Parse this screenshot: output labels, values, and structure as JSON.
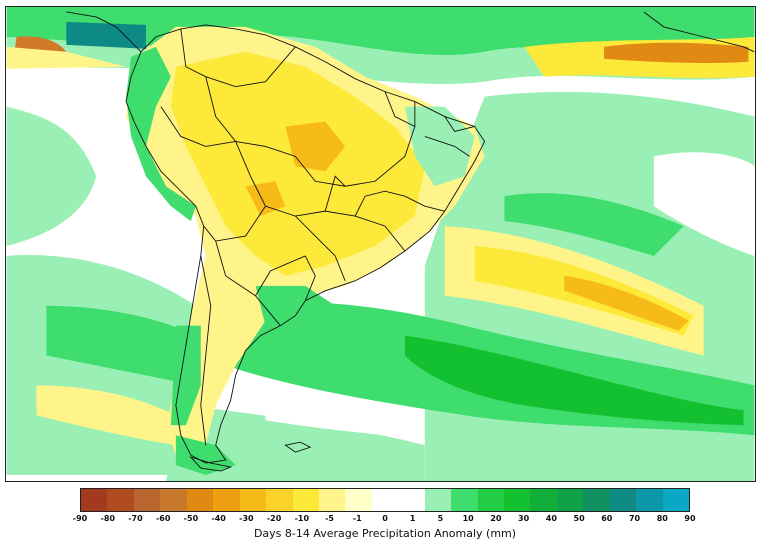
{
  "legend": {
    "label": "Days 8-14 Average Precipitation Anomaly (mm)",
    "ticks": [
      "-90",
      "-80",
      "-70",
      "-60",
      "-50",
      "-40",
      "-30",
      "-20",
      "-10",
      "-5",
      "-1",
      "0",
      "1",
      "5",
      "10",
      "20",
      "30",
      "40",
      "50",
      "60",
      "70",
      "80",
      "90"
    ],
    "colors": [
      "#a33a1e",
      "#b04b20",
      "#b8652f",
      "#c8782a",
      "#e08a14",
      "#eea010",
      "#f6bb18",
      "#fbd22a",
      "#fde93a",
      "#fff48a",
      "#ffffc8",
      "#ffffff",
      "#ffffff",
      "#9af0b4",
      "#3fdc6e",
      "#22cc44",
      "#12c030",
      "#10ae38",
      "#10a046",
      "#0f9060",
      "#0d8a86",
      "#0b97a8",
      "#0aa8c4"
    ]
  },
  "map": {
    "region": "south-america",
    "palette": {
      "dry_light": "#fff7a0",
      "dry_mid": "#fde93a",
      "dry_strong": "#f6bb18",
      "dry_extreme": "#d07a28",
      "wet_light": "#9af0b4",
      "wet_mid": "#3fdc6e",
      "wet_strong": "#12c030",
      "wet_extreme": "#0d8a86",
      "border": "#111111"
    }
  }
}
